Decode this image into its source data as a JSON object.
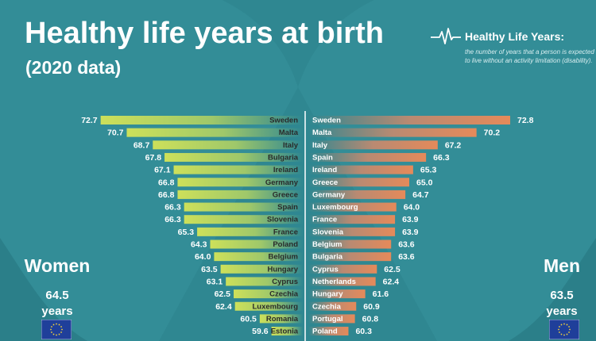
{
  "header": {
    "title": "Healthy life years at birth",
    "subtitle": "(2020 data)"
  },
  "definition": {
    "icon": "heartbeat-line-icon",
    "heading": "Healthy Life Years:",
    "text": "the number of years that a person is expected to live without an activity limitation (disability)."
  },
  "women": {
    "label": "Women",
    "value": "64.5",
    "unit": "years",
    "flag_icon": "eu-flag-icon"
  },
  "men": {
    "label": "Men",
    "value": "63.5",
    "unit": "years",
    "flag_icon": "eu-flag-icon"
  },
  "colors": {
    "background": "#2f8791",
    "women_bar_start": "#cde05a",
    "women_bar_end": "#2f8791",
    "men_bar_start": "#2f8791",
    "men_bar_end": "#e58a5a"
  },
  "chart_data": [
    {
      "type": "bar",
      "orientation": "horizontal",
      "series": [
        {
          "name": "Women",
          "values": [
            72.7,
            70.7,
            68.7,
            67.8,
            67.1,
            66.8,
            66.8,
            66.3,
            66.3,
            65.3,
            64.3,
            64.0,
            63.5,
            63.1,
            62.5,
            62.4,
            60.5,
            59.6
          ]
        }
      ],
      "categories": [
        "Sweden",
        "Malta",
        "Italy",
        "Bulgaria",
        "Ireland",
        "Germany",
        "Greece",
        "Spain",
        "Slovenia",
        "France",
        "Poland",
        "Belgium",
        "Hungary",
        "Cyprus",
        "Czechia",
        "Luxembourg",
        "Romania",
        "Estonia"
      ],
      "value_labels": [
        "72.7",
        "70.7",
        "68.7",
        "67.8",
        "67.1",
        "66.8",
        "66.8",
        "66.3",
        "66.3",
        "65.3",
        "64.3",
        "64.0",
        "63.5",
        "63.1",
        "62.5",
        "62.4",
        "60.5",
        "59.6"
      ]
    },
    {
      "type": "bar",
      "orientation": "horizontal",
      "series": [
        {
          "name": "Men",
          "values": [
            72.8,
            70.2,
            67.2,
            66.3,
            65.3,
            65.0,
            64.7,
            64.0,
            63.9,
            63.9,
            63.6,
            63.6,
            62.5,
            62.4,
            61.6,
            60.9,
            60.8,
            60.3
          ]
        }
      ],
      "categories": [
        "Sweden",
        "Malta",
        "Italy",
        "Spain",
        "Ireland",
        "Greece",
        "Germany",
        "Luxembourg",
        "France",
        "Slovenia",
        "Belgium",
        "Bulgaria",
        "Cyprus",
        "Netherlands",
        "Hungary",
        "Czechia",
        "Portugal",
        "Poland"
      ],
      "value_labels": [
        "72.8",
        "70.2",
        "67.2",
        "66.3",
        "65.3",
        "65.0",
        "64.7",
        "64.0",
        "63.9",
        "63.9",
        "63.6",
        "63.6",
        "62.5",
        "62.4",
        "61.6",
        "60.9",
        "60.8",
        "60.3"
      ]
    }
  ]
}
